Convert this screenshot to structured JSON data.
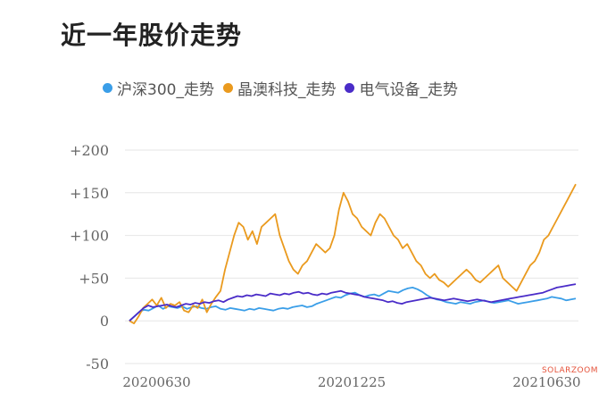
{
  "page": {
    "title": "近一年股价走势",
    "watermark": "SOLARZOOM"
  },
  "chart_data": {
    "type": "line",
    "title": "近一年股价走势",
    "xlabel": "",
    "ylabel": "",
    "ylim": [
      -50,
      200
    ],
    "y_ticks": [
      {
        "value": -50,
        "label": "-50"
      },
      {
        "value": 0,
        "label": "0"
      },
      {
        "value": 50,
        "label": "+50"
      },
      {
        "value": 100,
        "label": "+100"
      },
      {
        "value": 150,
        "label": "+150"
      },
      {
        "value": 200,
        "label": "+200"
      }
    ],
    "x_ticks": [
      "20200630",
      "20201225",
      "20210630"
    ],
    "x_tick_positions": [
      0.07,
      0.5,
      0.93
    ],
    "grid": "horizontal",
    "legend_position": "top",
    "series": [
      {
        "name": "沪深300_走势",
        "color": "#3a9ee8",
        "values": [
          0,
          5,
          10,
          13,
          12,
          15,
          18,
          14,
          17,
          16,
          15,
          17,
          14,
          16,
          17,
          15,
          14,
          16,
          17,
          14,
          13,
          15,
          14,
          13,
          12,
          14,
          13,
          15,
          14,
          13,
          12,
          14,
          15,
          14,
          16,
          17,
          18,
          16,
          17,
          20,
          22,
          24,
          26,
          28,
          27,
          30,
          32,
          33,
          30,
          28,
          30,
          31,
          29,
          32,
          35,
          34,
          33,
          36,
          38,
          39,
          37,
          34,
          30,
          27,
          25,
          24,
          22,
          21,
          20,
          22,
          21,
          20,
          22,
          23,
          24,
          22,
          21,
          22,
          23,
          24,
          22,
          20,
          21,
          22,
          23,
          24,
          25,
          26,
          28,
          27,
          26,
          24,
          25,
          26
        ]
      },
      {
        "name": "晶澳科技_走势",
        "color": "#ea9a1e",
        "values": [
          0,
          -3,
          5,
          15,
          20,
          25,
          18,
          27,
          15,
          20,
          18,
          22,
          12,
          10,
          18,
          15,
          25,
          10,
          20,
          28,
          35,
          60,
          80,
          100,
          115,
          110,
          95,
          105,
          90,
          110,
          115,
          120,
          125,
          100,
          85,
          70,
          60,
          55,
          65,
          70,
          80,
          90,
          85,
          80,
          85,
          100,
          130,
          150,
          140,
          125,
          120,
          110,
          105,
          100,
          115,
          125,
          120,
          110,
          100,
          95,
          85,
          90,
          80,
          70,
          65,
          55,
          50,
          55,
          48,
          45,
          40,
          45,
          50,
          55,
          60,
          55,
          48,
          45,
          50,
          55,
          60,
          65,
          50,
          45,
          40,
          35,
          45,
          55,
          65,
          70,
          80,
          95,
          100,
          110,
          120,
          130,
          140,
          150,
          160
        ]
      },
      {
        "name": "电气设备_走势",
        "color": "#4a2cc8",
        "values": [
          0,
          5,
          10,
          15,
          18,
          16,
          17,
          18,
          19,
          17,
          16,
          18,
          20,
          19,
          21,
          20,
          22,
          21,
          23,
          24,
          22,
          25,
          27,
          29,
          28,
          30,
          29,
          31,
          30,
          29,
          32,
          31,
          30,
          32,
          31,
          33,
          34,
          32,
          33,
          31,
          30,
          32,
          31,
          33,
          34,
          35,
          33,
          32,
          31,
          30,
          28,
          27,
          26,
          25,
          24,
          22,
          23,
          21,
          20,
          22,
          23,
          24,
          25,
          26,
          27,
          26,
          25,
          24,
          25,
          26,
          25,
          24,
          23,
          24,
          25,
          24,
          23,
          22,
          23,
          24,
          25,
          26,
          27,
          28,
          29,
          30,
          31,
          32,
          33,
          35,
          37,
          39,
          40,
          41,
          42,
          43
        ]
      }
    ]
  }
}
